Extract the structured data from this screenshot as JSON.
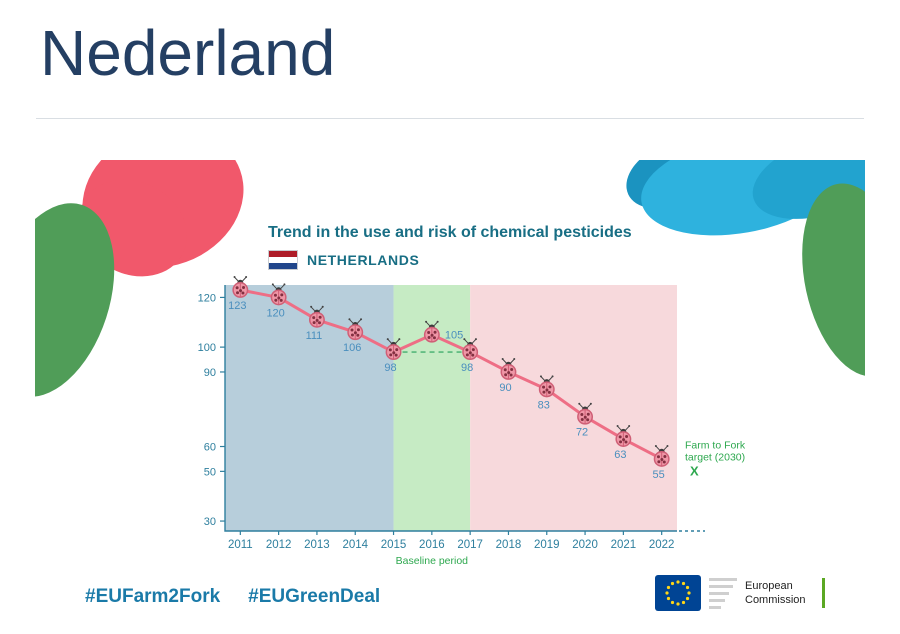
{
  "title": "Nederland",
  "chart_data": {
    "type": "line",
    "title": "Trend in the use and risk of chemical pesticides",
    "country": "NETHERLANDS",
    "marker_icon": "ladybug-icon",
    "x": [
      2011,
      2012,
      2013,
      2014,
      2015,
      2016,
      2017,
      2018,
      2019,
      2020,
      2021,
      2022
    ],
    "values": [
      123,
      120,
      111,
      106,
      98,
      105,
      98,
      90,
      83,
      72,
      63,
      55
    ],
    "y_ticks": [
      30,
      50,
      60,
      90,
      100,
      120
    ],
    "ylim": [
      26,
      125
    ],
    "zones": [
      {
        "from": 2011,
        "to": 2015,
        "color": "#b7cedb",
        "label": ""
      },
      {
        "from": 2015,
        "to": 2017,
        "color": "#c6ebc4",
        "label": "Baseline period"
      },
      {
        "from": 2017,
        "to": 2022,
        "color": "#f7d9dc",
        "label": ""
      }
    ],
    "baseline": {
      "value": 98,
      "from": 2015,
      "to": 2017,
      "color": "#57b87b"
    },
    "target": {
      "label": [
        "Farm to Fork",
        "target (2030)"
      ],
      "marker": "X",
      "value": 50,
      "color": "#2ea84f"
    },
    "colors": {
      "line": "#ee6e85",
      "value_labels": "#4a8fbe",
      "axis": "#2e7f9e",
      "title": "#186e84"
    }
  },
  "flag": {
    "stripes": [
      "#AE1C28",
      "#FFFFFF",
      "#21468B"
    ]
  },
  "hashtags": [
    {
      "label": "#EUFarm2Fork"
    },
    {
      "label": "#EUGreenDeal"
    }
  ],
  "ec_logo": {
    "line1": "European",
    "line2": "Commission"
  }
}
